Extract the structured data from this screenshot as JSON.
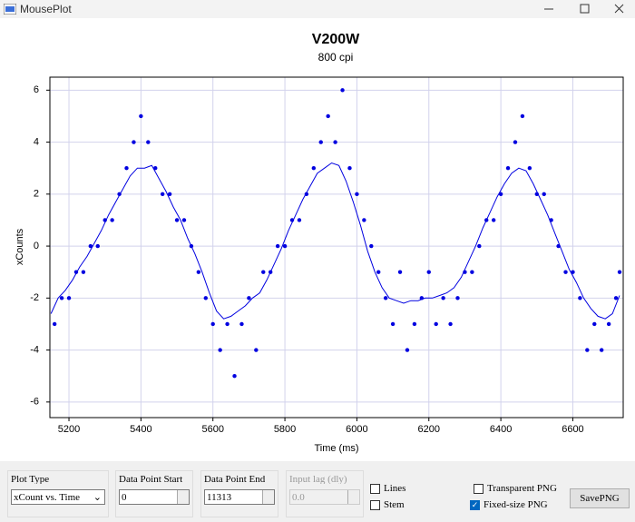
{
  "window": {
    "title": "MousePlot"
  },
  "chart_data": {
    "type": "scatter-line",
    "title": "V200W",
    "subtitle": "800 cpi",
    "x_label": "Time (ms)",
    "y_label": "xCounts",
    "xlim": [
      5147,
      6740
    ],
    "ylim": [
      -6.6,
      6.5
    ],
    "xticks": [
      5200,
      5400,
      5600,
      5800,
      6000,
      6200,
      6400,
      6600
    ],
    "yticks": [
      -6,
      -4,
      -2,
      0,
      2,
      4,
      6
    ],
    "grid": true,
    "series": [
      {
        "type": "line",
        "color": "#0000e0",
        "x": [
          5150,
          5170,
          5190,
          5210,
          5230,
          5250,
          5270,
          5290,
          5310,
          5330,
          5350,
          5370,
          5390,
          5410,
          5430,
          5450,
          5470,
          5490,
          5510,
          5530,
          5550,
          5570,
          5590,
          5610,
          5630,
          5650,
          5670,
          5690,
          5710,
          5730,
          5750,
          5770,
          5790,
          5810,
          5830,
          5850,
          5870,
          5890,
          5910,
          5930,
          5950,
          5970,
          5990,
          6010,
          6030,
          6050,
          6070,
          6090,
          6110,
          6130,
          6150,
          6170,
          6190,
          6210,
          6230,
          6250,
          6270,
          6290,
          6310,
          6330,
          6350,
          6370,
          6390,
          6410,
          6430,
          6450,
          6470,
          6490,
          6510,
          6530,
          6550,
          6570,
          6590,
          6610,
          6630,
          6650,
          6670,
          6690,
          6710,
          6730
        ],
        "values": [
          -2.6,
          -2.0,
          -1.7,
          -1.3,
          -0.8,
          -0.4,
          0.1,
          0.6,
          1.2,
          1.7,
          2.2,
          2.7,
          3.0,
          3.0,
          3.1,
          2.6,
          2.1,
          1.5,
          1.0,
          0.3,
          -0.3,
          -1.0,
          -1.8,
          -2.5,
          -2.8,
          -2.7,
          -2.5,
          -2.3,
          -2.0,
          -1.8,
          -1.3,
          -0.7,
          -0.1,
          0.6,
          1.2,
          1.8,
          2.3,
          2.8,
          3.0,
          3.2,
          3.1,
          2.5,
          1.7,
          0.8,
          -0.2,
          -1.0,
          -1.6,
          -2.0,
          -2.1,
          -2.2,
          -2.1,
          -2.1,
          -2.0,
          -2.0,
          -1.9,
          -1.8,
          -1.6,
          -1.2,
          -0.6,
          0.0,
          0.7,
          1.3,
          1.9,
          2.4,
          2.8,
          3.0,
          2.9,
          2.4,
          1.8,
          1.2,
          0.5,
          -0.2,
          -0.9,
          -1.4,
          -2.0,
          -2.4,
          -2.7,
          -2.8,
          -2.6,
          -1.9
        ]
      },
      {
        "type": "scatter",
        "color": "#0000e0",
        "x": [
          5160,
          5180,
          5200,
          5220,
          5240,
          5260,
          5280,
          5300,
          5320,
          5340,
          5360,
          5380,
          5400,
          5420,
          5440,
          5460,
          5480,
          5500,
          5520,
          5540,
          5560,
          5580,
          5600,
          5620,
          5640,
          5660,
          5680,
          5700,
          5720,
          5740,
          5760,
          5780,
          5800,
          5820,
          5840,
          5860,
          5880,
          5900,
          5920,
          5940,
          5960,
          5980,
          6000,
          6020,
          6040,
          6060,
          6080,
          6100,
          6120,
          6140,
          6160,
          6180,
          6200,
          6220,
          6240,
          6260,
          6280,
          6300,
          6320,
          6340,
          6360,
          6380,
          6400,
          6420,
          6440,
          6460,
          6480,
          6500,
          6520,
          6540,
          6560,
          6580,
          6600,
          6620,
          6640,
          6660,
          6680,
          6700,
          6720,
          6730
        ],
        "values": [
          -3,
          -2,
          -2,
          -1,
          -1,
          0,
          0,
          1,
          1,
          2,
          3,
          4,
          5,
          4,
          3,
          2,
          2,
          1,
          1,
          0,
          -1,
          -2,
          -3,
          -4,
          -3,
          -5,
          -3,
          -2,
          -4,
          -1,
          -1,
          0,
          0,
          1,
          1,
          2,
          3,
          4,
          5,
          4,
          6,
          3,
          2,
          1,
          0,
          -1,
          -2,
          -3,
          -1,
          -4,
          -3,
          -2,
          -1,
          -3,
          -2,
          -3,
          -2,
          -1,
          -1,
          0,
          1,
          1,
          2,
          3,
          4,
          5,
          3,
          2,
          2,
          1,
          0,
          -1,
          -1,
          -2,
          -4,
          -3,
          -4,
          -3,
          -2,
          -1
        ]
      }
    ]
  },
  "controls": {
    "plot_type": {
      "label": "Plot Type",
      "value": "xCount vs. Time"
    },
    "start": {
      "label": "Data Point Start",
      "value": "0"
    },
    "end": {
      "label": "Data Point End",
      "value": "11313"
    },
    "lag": {
      "label": "Input lag (dly)",
      "value": "0.0"
    },
    "lines": {
      "label": "Lines",
      "checked": false
    },
    "stem": {
      "label": "Stem",
      "checked": false
    },
    "transparent": {
      "label": "Transparent PNG",
      "checked": false
    },
    "fixed": {
      "label": "Fixed-size PNG",
      "checked": true
    },
    "save": "SavePNG"
  }
}
